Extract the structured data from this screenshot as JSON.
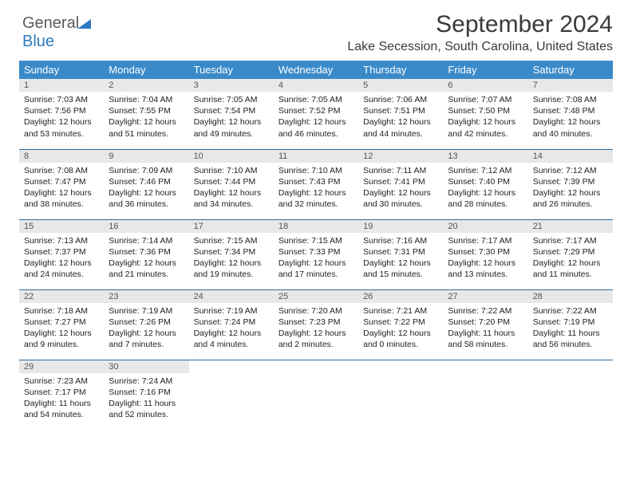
{
  "logo": {
    "text1": "General",
    "text2": "Blue"
  },
  "header": {
    "month_year": "September 2024",
    "location": "Lake Secession, South Carolina, United States"
  },
  "style": {
    "header_bg": "#3a8ac9",
    "header_fg": "#ffffff",
    "daynum_bg": "#e8e8e8",
    "row_border": "#2f6ca0",
    "logo_gray": "#5a5a5a",
    "logo_blue": "#2f7ac0",
    "text_color": "#3a3a3a",
    "month_fontsize": 30,
    "location_fontsize": 16,
    "th_fontsize": 13,
    "body_fontsize": 10.5
  },
  "day_names": [
    "Sunday",
    "Monday",
    "Tuesday",
    "Wednesday",
    "Thursday",
    "Friday",
    "Saturday"
  ],
  "days": {
    "1": {
      "sunrise": "7:03 AM",
      "sunset": "7:56 PM",
      "daylight": "12 hours and 53 minutes."
    },
    "2": {
      "sunrise": "7:04 AM",
      "sunset": "7:55 PM",
      "daylight": "12 hours and 51 minutes."
    },
    "3": {
      "sunrise": "7:05 AM",
      "sunset": "7:54 PM",
      "daylight": "12 hours and 49 minutes."
    },
    "4": {
      "sunrise": "7:05 AM",
      "sunset": "7:52 PM",
      "daylight": "12 hours and 46 minutes."
    },
    "5": {
      "sunrise": "7:06 AM",
      "sunset": "7:51 PM",
      "daylight": "12 hours and 44 minutes."
    },
    "6": {
      "sunrise": "7:07 AM",
      "sunset": "7:50 PM",
      "daylight": "12 hours and 42 minutes."
    },
    "7": {
      "sunrise": "7:08 AM",
      "sunset": "7:48 PM",
      "daylight": "12 hours and 40 minutes."
    },
    "8": {
      "sunrise": "7:08 AM",
      "sunset": "7:47 PM",
      "daylight": "12 hours and 38 minutes."
    },
    "9": {
      "sunrise": "7:09 AM",
      "sunset": "7:46 PM",
      "daylight": "12 hours and 36 minutes."
    },
    "10": {
      "sunrise": "7:10 AM",
      "sunset": "7:44 PM",
      "daylight": "12 hours and 34 minutes."
    },
    "11": {
      "sunrise": "7:10 AM",
      "sunset": "7:43 PM",
      "daylight": "12 hours and 32 minutes."
    },
    "12": {
      "sunrise": "7:11 AM",
      "sunset": "7:41 PM",
      "daylight": "12 hours and 30 minutes."
    },
    "13": {
      "sunrise": "7:12 AM",
      "sunset": "7:40 PM",
      "daylight": "12 hours and 28 minutes."
    },
    "14": {
      "sunrise": "7:12 AM",
      "sunset": "7:39 PM",
      "daylight": "12 hours and 26 minutes."
    },
    "15": {
      "sunrise": "7:13 AM",
      "sunset": "7:37 PM",
      "daylight": "12 hours and 24 minutes."
    },
    "16": {
      "sunrise": "7:14 AM",
      "sunset": "7:36 PM",
      "daylight": "12 hours and 21 minutes."
    },
    "17": {
      "sunrise": "7:15 AM",
      "sunset": "7:34 PM",
      "daylight": "12 hours and 19 minutes."
    },
    "18": {
      "sunrise": "7:15 AM",
      "sunset": "7:33 PM",
      "daylight": "12 hours and 17 minutes."
    },
    "19": {
      "sunrise": "7:16 AM",
      "sunset": "7:31 PM",
      "daylight": "12 hours and 15 minutes."
    },
    "20": {
      "sunrise": "7:17 AM",
      "sunset": "7:30 PM",
      "daylight": "12 hours and 13 minutes."
    },
    "21": {
      "sunrise": "7:17 AM",
      "sunset": "7:29 PM",
      "daylight": "12 hours and 11 minutes."
    },
    "22": {
      "sunrise": "7:18 AM",
      "sunset": "7:27 PM",
      "daylight": "12 hours and 9 minutes."
    },
    "23": {
      "sunrise": "7:19 AM",
      "sunset": "7:26 PM",
      "daylight": "12 hours and 7 minutes."
    },
    "24": {
      "sunrise": "7:19 AM",
      "sunset": "7:24 PM",
      "daylight": "12 hours and 4 minutes."
    },
    "25": {
      "sunrise": "7:20 AM",
      "sunset": "7:23 PM",
      "daylight": "12 hours and 2 minutes."
    },
    "26": {
      "sunrise": "7:21 AM",
      "sunset": "7:22 PM",
      "daylight": "12 hours and 0 minutes."
    },
    "27": {
      "sunrise": "7:22 AM",
      "sunset": "7:20 PM",
      "daylight": "11 hours and 58 minutes."
    },
    "28": {
      "sunrise": "7:22 AM",
      "sunset": "7:19 PM",
      "daylight": "11 hours and 56 minutes."
    },
    "29": {
      "sunrise": "7:23 AM",
      "sunset": "7:17 PM",
      "daylight": "11 hours and 54 minutes."
    },
    "30": {
      "sunrise": "7:24 AM",
      "sunset": "7:16 PM",
      "daylight": "11 hours and 52 minutes."
    }
  },
  "labels": {
    "sunrise": "Sunrise:",
    "sunset": "Sunset:",
    "daylight": "Daylight:"
  },
  "grid": [
    [
      1,
      2,
      3,
      4,
      5,
      6,
      7
    ],
    [
      8,
      9,
      10,
      11,
      12,
      13,
      14
    ],
    [
      15,
      16,
      17,
      18,
      19,
      20,
      21
    ],
    [
      22,
      23,
      24,
      25,
      26,
      27,
      28
    ],
    [
      29,
      30,
      null,
      null,
      null,
      null,
      null
    ]
  ]
}
